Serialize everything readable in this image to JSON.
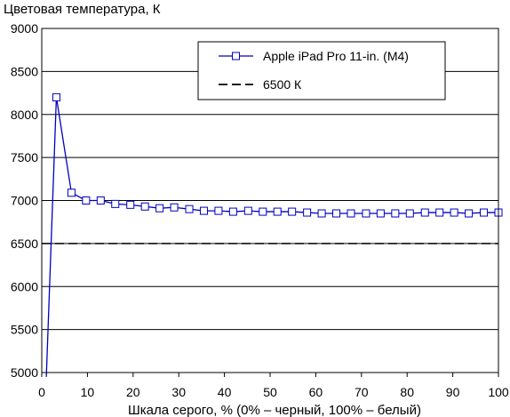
{
  "chart_data": {
    "type": "line",
    "title": "",
    "ylabel": "Цветовая температура, К",
    "xlabel": "Шкала серого, % (0% – черный, 100% – белый)",
    "xlim": [
      0,
      100
    ],
    "ylim": [
      5000,
      9000
    ],
    "x_ticks": [
      0,
      10,
      20,
      30,
      40,
      50,
      60,
      70,
      80,
      90,
      100
    ],
    "x_tick_labels": [
      "0",
      "10",
      "20",
      "30",
      "40",
      "50",
      "60",
      "70",
      "80",
      "90",
      "100"
    ],
    "y_ticks": [
      5000,
      5500,
      6000,
      6500,
      7000,
      7500,
      8000,
      8500,
      9000
    ],
    "y_tick_labels": [
      "5000",
      "5500",
      "6000",
      "6500",
      "7000",
      "7500",
      "8000",
      "8500",
      "9000"
    ],
    "grid": "horizontal",
    "legend_position": "top-right",
    "series": [
      {
        "name": "Apple iPad Pro 11-in. (M4)",
        "color": "#0000c0",
        "marker": "square",
        "line_style": "solid",
        "x": [
          1,
          3.2,
          6.5,
          9.7,
          12.9,
          16.1,
          19.4,
          22.6,
          25.8,
          29.0,
          32.3,
          35.5,
          38.7,
          41.9,
          45.2,
          48.4,
          51.6,
          54.8,
          58.1,
          61.3,
          64.5,
          67.7,
          71.0,
          74.2,
          77.4,
          80.6,
          83.9,
          87.1,
          90.3,
          93.5,
          96.8,
          100
        ],
        "values": [
          4950,
          8200,
          7090,
          7000,
          7000,
          6960,
          6950,
          6930,
          6910,
          6920,
          6900,
          6880,
          6880,
          6870,
          6880,
          6870,
          6870,
          6870,
          6860,
          6850,
          6850,
          6850,
          6850,
          6850,
          6850,
          6850,
          6860,
          6860,
          6860,
          6850,
          6860,
          6860
        ],
        "marker_from_index": 1
      },
      {
        "name": "6500 К",
        "color": "#000000",
        "marker": "none",
        "line_style": "dashed",
        "x": [
          0,
          100
        ],
        "values": [
          6500,
          6500
        ]
      }
    ]
  }
}
